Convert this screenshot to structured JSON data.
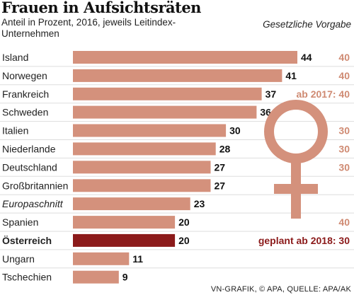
{
  "header": {
    "title": "Frauen in Aufsichtsräten",
    "subtitle": "Anteil in Prozent, 2016, jeweils Leitindex-Unternehmen",
    "legal_column_heading": "Gesetzliche Vorgabe"
  },
  "source": "VN-GRAFIK, © APA, QUELLE: APA/AK",
  "symbol": "female-symbol-icon",
  "colors": {
    "bar": "#d4917c",
    "highlight_bar": "#8b1a1a",
    "legal_text": "#cf8a72",
    "highlight_text": "#8b1a1a",
    "divider": "#dddddd"
  },
  "chart_data": {
    "type": "bar",
    "orientation": "horizontal",
    "categories": [
      "Island",
      "Norwegen",
      "Frankreich",
      "Schweden",
      "Italien",
      "Niederlande",
      "Deutschland",
      "Großbritannien",
      "Europaschnitt",
      "Spanien",
      "Österreich",
      "Ungarn",
      "Tschechien"
    ],
    "values": [
      44,
      41,
      37,
      36,
      30,
      28,
      27,
      27,
      23,
      20,
      20,
      11,
      9
    ],
    "value_labels": [
      "44",
      "41",
      "37",
      "36",
      "30",
      "28",
      "27",
      "27",
      "23",
      "20",
      "20",
      "11",
      "9"
    ],
    "legal_requirement": [
      "40",
      "40",
      "ab 2017: 40",
      "",
      "30",
      "30",
      "30",
      "",
      "",
      "40",
      "geplant ab 2018: 30",
      "",
      ""
    ],
    "highlight": [
      "",
      "",
      "",
      "",
      "",
      "",
      "",
      "",
      "",
      "",
      "Österreich",
      "",
      ""
    ],
    "italic": [
      "",
      "",
      "",
      "",
      "",
      "",
      "",
      "",
      "Europaschnitt",
      "",
      "",
      "",
      ""
    ],
    "xlim": [
      0,
      44
    ],
    "grid": false
  }
}
